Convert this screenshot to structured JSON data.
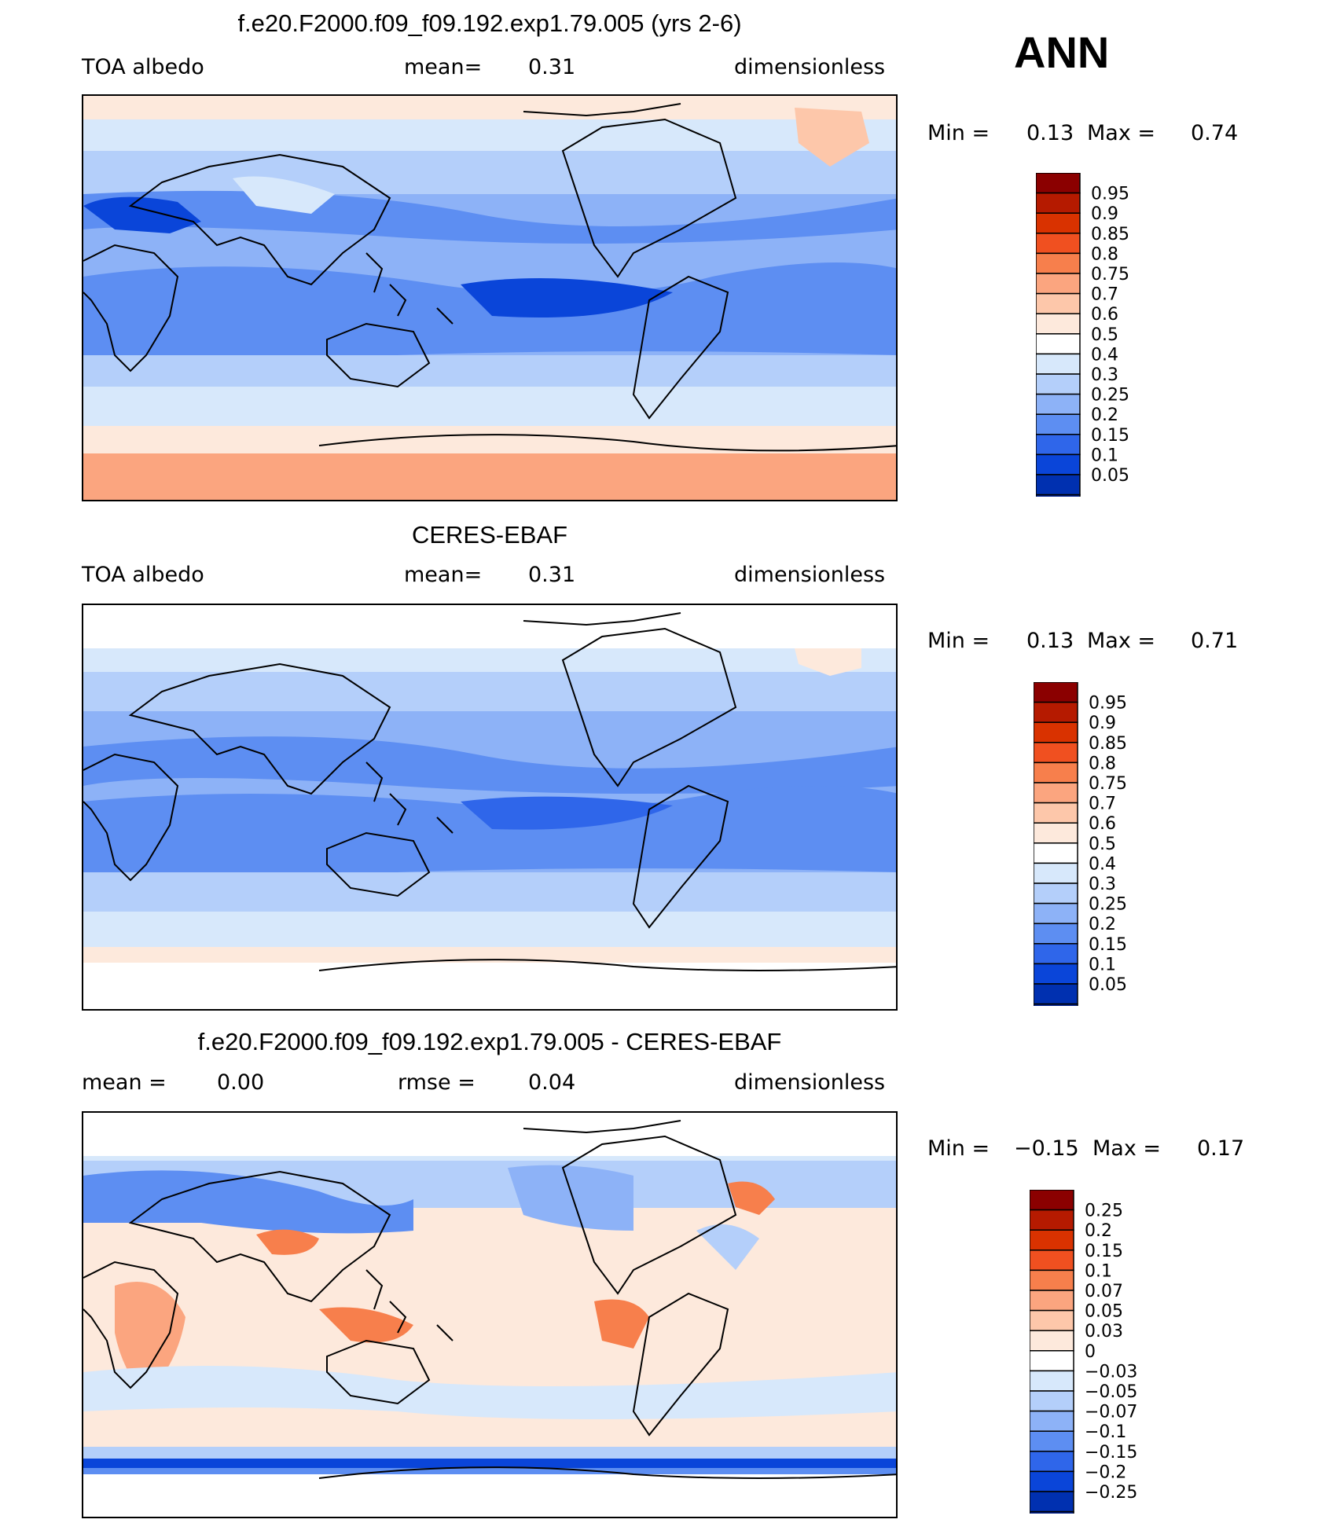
{
  "season": "ANN",
  "panels": [
    {
      "title": "f.e20.F2000.f09_f09.192.exp1.79.005 (yrs 2-6)",
      "left_label": "TOA albedo",
      "center_label": "mean=",
      "center_value": "0.31",
      "right_label": "dimensionless",
      "min_label": "Min =",
      "min_value": "0.13",
      "max_label": "Max =",
      "max_value": "0.74"
    },
    {
      "title": "CERES-EBAF",
      "left_label": "TOA albedo",
      "center_label": "mean=",
      "center_value": "0.31",
      "right_label": "dimensionless",
      "min_label": "Min =",
      "min_value": "0.13",
      "max_label": "Max =",
      "max_value": "0.71"
    },
    {
      "title": "f.e20.F2000.f09_f09.192.exp1.79.005 - CERES-EBAF",
      "left_label": "mean =",
      "left_value": "0.00",
      "center_label": "rmse =",
      "center_value": "0.04",
      "right_label": "dimensionless",
      "min_label": "Min =",
      "min_value": "−0.15",
      "max_label": "Max =",
      "max_value": "0.17"
    }
  ],
  "chart_data": [
    {
      "type": "heatmap",
      "title": "f.e20.F2000.f09_f09.192.exp1.79.005 (yrs 2-6)",
      "variable": "TOA albedo",
      "units": "dimensionless",
      "mean": 0.31,
      "min": 0.13,
      "max": 0.74,
      "colorbar": {
        "levels": [
          "0.95",
          "0.9",
          "0.85",
          "0.8",
          "0.75",
          "0.7",
          "0.6",
          "0.5",
          "0.4",
          "0.3",
          "0.25",
          "0.2",
          "0.15",
          "0.1",
          "0.05"
        ],
        "colors": [
          "#8b0000",
          "#b51a00",
          "#d93200",
          "#f05020",
          "#f77f4c",
          "#fba57f",
          "#fdc7aa",
          "#fde9dc",
          "#ffffff",
          "#d7e8fb",
          "#b4cffa",
          "#8db2f7",
          "#5d8ef2",
          "#2f66ea",
          "#0a45d9",
          "#0030b0",
          "#00208a"
        ]
      }
    },
    {
      "type": "heatmap",
      "title": "CERES-EBAF",
      "variable": "TOA albedo",
      "units": "dimensionless",
      "mean": 0.31,
      "min": 0.13,
      "max": 0.71,
      "colorbar": {
        "levels": [
          "0.95",
          "0.9",
          "0.85",
          "0.8",
          "0.75",
          "0.7",
          "0.6",
          "0.5",
          "0.4",
          "0.3",
          "0.25",
          "0.2",
          "0.15",
          "0.1",
          "0.05"
        ],
        "colors": [
          "#8b0000",
          "#b51a00",
          "#d93200",
          "#f05020",
          "#f77f4c",
          "#fba57f",
          "#fdc7aa",
          "#fde9dc",
          "#ffffff",
          "#d7e8fb",
          "#b4cffa",
          "#8db2f7",
          "#5d8ef2",
          "#2f66ea",
          "#0a45d9",
          "#0030b0",
          "#00208a"
        ]
      }
    },
    {
      "type": "heatmap",
      "title": "f.e20.F2000.f09_f09.192.exp1.79.005 - CERES-EBAF",
      "units": "dimensionless",
      "mean": 0.0,
      "rmse": 0.04,
      "min": -0.15,
      "max": 0.17,
      "colorbar": {
        "levels": [
          "0.25",
          "0.2",
          "0.15",
          "0.1",
          "0.07",
          "0.05",
          "0.03",
          "0",
          "−0.03",
          "−0.05",
          "−0.07",
          "−0.1",
          "−0.15",
          "−0.2",
          "−0.25"
        ],
        "colors": [
          "#8b0000",
          "#b51a00",
          "#d93200",
          "#f05020",
          "#f77f4c",
          "#fba57f",
          "#fdc7aa",
          "#fde9dc",
          "#ffffff",
          "#d7e8fb",
          "#b4cffa",
          "#8db2f7",
          "#5d8ef2",
          "#2f66ea",
          "#0a45d9",
          "#0030b0",
          "#00208a"
        ]
      }
    }
  ]
}
